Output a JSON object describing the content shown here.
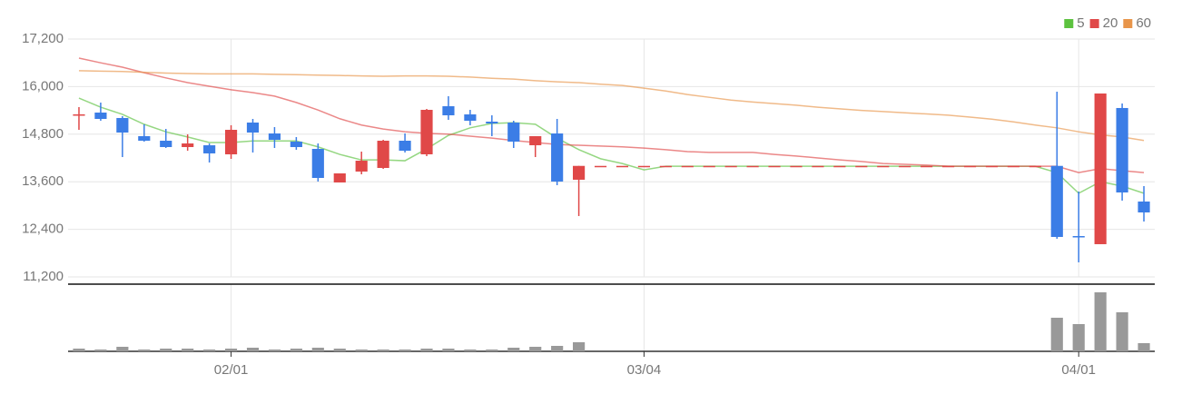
{
  "chart_data": {
    "type": "candlestick",
    "categories": [
      null,
      null,
      null,
      null,
      null,
      null,
      null,
      "02/01",
      null,
      null,
      null,
      null,
      null,
      null,
      null,
      null,
      null,
      null,
      null,
      null,
      null,
      null,
      null,
      null,
      null,
      null,
      "03/04",
      null,
      null,
      null,
      null,
      null,
      null,
      null,
      null,
      null,
      null,
      null,
      null,
      null,
      null,
      null,
      null,
      null,
      null,
      null,
      "04/01",
      null,
      null,
      null
    ],
    "open": [
      15280,
      15345,
      15208,
      14750,
      14635,
      14475,
      14520,
      14292,
      15093,
      14818,
      14612,
      14429,
      13582,
      13857,
      13948,
      14635,
      14292,
      15505,
      15299,
      15116,
      15093,
      14521,
      14818,
      13651,
      14000,
      14000,
      14000,
      14000,
      14000,
      14000,
      14000,
      14000,
      14000,
      14000,
      14000,
      14000,
      14000,
      14000,
      14000,
      14000,
      14000,
      14000,
      14000,
      14000,
      14000,
      14000,
      12230,
      12025,
      15460,
      13101
    ],
    "high": [
      15483,
      15597,
      15254,
      15048,
      14933,
      14796,
      14566,
      15025,
      15185,
      14979,
      14727,
      14566,
      13811,
      14360,
      14658,
      14819,
      15437,
      15757,
      15414,
      15276,
      15139,
      14750,
      15185,
      14000,
      14000,
      14000,
      14000,
      14000,
      14000,
      14000,
      14000,
      14000,
      14000,
      14000,
      14000,
      14000,
      14000,
      14000,
      14000,
      14000,
      14000,
      14000,
      14000,
      14000,
      14000,
      15872,
      13353,
      15826,
      15574,
      13490
    ],
    "low": [
      14910,
      15139,
      14223,
      14612,
      14452,
      14383,
      14086,
      14177,
      14338,
      14452,
      14406,
      13605,
      13582,
      13788,
      13925,
      14338,
      14246,
      15162,
      15025,
      14750,
      14452,
      14223,
      13513,
      12735,
      14000,
      14000,
      14000,
      14000,
      14000,
      14000,
      14000,
      14000,
      14000,
      14000,
      14000,
      14000,
      14000,
      14000,
      14000,
      14000,
      14000,
      14000,
      14000,
      14000,
      14000,
      12162,
      11567,
      12025,
      13124,
      12597
    ],
    "close": [
      15300,
      15185,
      14841,
      14635,
      14475,
      14566,
      14315,
      14910,
      14841,
      14658,
      14475,
      13696,
      13811,
      14131,
      14635,
      14383,
      15414,
      15276,
      15139,
      15070,
      14612,
      14750,
      13605,
      14000,
      14000,
      14000,
      14000,
      14000,
      14000,
      14000,
      14000,
      14000,
      14000,
      14000,
      14000,
      14000,
      14000,
      14000,
      14000,
      14000,
      14000,
      14000,
      14000,
      14000,
      14000,
      12208,
      12208,
      15826,
      13330,
      12826
    ],
    "up_color": "#e04848",
    "down_color": "#3b7de6",
    "series": [
      {
        "name": "5",
        "color": "#5cc23f",
        "values": [
          15710,
          15480,
          15300,
          15050,
          14860,
          14730,
          14590,
          14590,
          14630,
          14630,
          14630,
          14480,
          14290,
          14150,
          14150,
          14130,
          14430,
          14770,
          14960,
          15070,
          15090,
          15050,
          14700,
          14410,
          14180,
          14060,
          13900,
          13990,
          13990,
          13990,
          13990,
          13990,
          13990,
          13990,
          13990,
          13990,
          13990,
          13990,
          13990,
          13990,
          13990,
          13990,
          13990,
          13990,
          13990,
          13830,
          13310,
          13600,
          13490,
          13310
        ]
      },
      {
        "name": "20",
        "color": "#e04848",
        "values": [
          16720,
          16600,
          16490,
          16350,
          16220,
          16100,
          16010,
          15920,
          15850,
          15760,
          15600,
          15410,
          15190,
          15030,
          14930,
          14860,
          14820,
          14800,
          14750,
          14700,
          14640,
          14590,
          14540,
          14520,
          14500,
          14480,
          14450,
          14410,
          14360,
          14340,
          14340,
          14340,
          14290,
          14250,
          14200,
          14150,
          14110,
          14060,
          14040,
          14020,
          13990,
          13990,
          13990,
          13990,
          13990,
          13990,
          13830,
          13930,
          13880,
          13830
        ]
      },
      {
        "name": "60",
        "color": "#e8954a",
        "values": [
          16400,
          16390,
          16380,
          16360,
          16340,
          16330,
          16320,
          16320,
          16320,
          16310,
          16300,
          16290,
          16280,
          16270,
          16260,
          16270,
          16270,
          16260,
          16240,
          16210,
          16190,
          16150,
          16120,
          16100,
          16060,
          16030,
          15960,
          15890,
          15800,
          15730,
          15660,
          15610,
          15570,
          15530,
          15480,
          15440,
          15400,
          15370,
          15340,
          15310,
          15280,
          15230,
          15180,
          15110,
          15030,
          14960,
          14860,
          14780,
          14730,
          14640
        ]
      }
    ],
    "volume": [
      3,
      2,
      5,
      2,
      3,
      3,
      2,
      3,
      4,
      2,
      3,
      4,
      3,
      2,
      2,
      2,
      3,
      3,
      2,
      2,
      4,
      5,
      6,
      10,
      0,
      0,
      0,
      0,
      0,
      0,
      0,
      0,
      0,
      0,
      0,
      0,
      0,
      0,
      0,
      0,
      0,
      0,
      0,
      0,
      0,
      37,
      30,
      65,
      43,
      9
    ],
    "volume_color": "#999999",
    "vlim": [
      0,
      70
    ],
    "ylim": [
      11200,
      17200
    ],
    "yticks": [
      {
        "value": 11200,
        "label": "11,200"
      },
      {
        "value": 12400,
        "label": "12,400"
      },
      {
        "value": 13600,
        "label": "13,600"
      },
      {
        "value": 14800,
        "label": "14,800"
      },
      {
        "value": 16000,
        "label": "16,000"
      },
      {
        "value": 17200,
        "label": "17,200"
      }
    ],
    "grid": true,
    "legend": "top-right"
  }
}
